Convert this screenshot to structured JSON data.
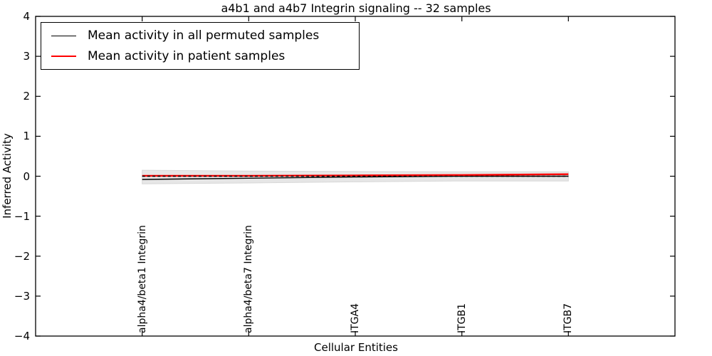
{
  "chart_data": {
    "type": "line",
    "title": "a4b1 and a4b7 Integrin signaling -- 32 samples",
    "xlabel": "Cellular Entities",
    "ylabel": "Inferred Activity",
    "xlim": [
      0,
      6
    ],
    "ylim": [
      -4,
      4
    ],
    "yticks": [
      -4,
      -3,
      -2,
      -1,
      0,
      1,
      2,
      3,
      4
    ],
    "grid": false,
    "legend_position": "upper left",
    "x": [
      1,
      2,
      3,
      4,
      5
    ],
    "categories": [
      "alpha4/beta1 Integrin",
      "alpha4/beta7 Integrin",
      "ITGA4",
      "ITGB1",
      "ITGB7"
    ],
    "series": [
      {
        "name": "Mean activity in all permuted samples",
        "color": "#000000",
        "style": "solid",
        "values": [
          -0.08,
          -0.05,
          -0.02,
          0.0,
          0.0
        ]
      },
      {
        "name": "Mean activity in patient samples",
        "color": "#ff0000",
        "style": "solid",
        "values": [
          0.01,
          0.01,
          0.02,
          0.03,
          0.05
        ]
      }
    ],
    "zero_reference_line": {
      "style": "dashed",
      "color": "#000000",
      "y": 0,
      "x_range": [
        1,
        5
      ]
    },
    "band": {
      "name": "permuted-activity-range",
      "color": "#e6e6e6",
      "edge_color": "#d8d8d8",
      "upper": [
        0.15,
        0.13,
        0.12,
        0.11,
        0.11
      ],
      "lower": [
        -0.19,
        -0.17,
        -0.14,
        -0.12,
        -0.12
      ]
    }
  }
}
